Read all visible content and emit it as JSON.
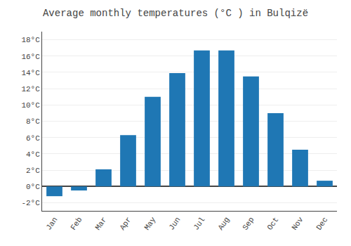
{
  "chart_data": {
    "type": "bar",
    "title": "Average monthly temperatures (°C ) in Bulqizë",
    "categories": [
      "Jan",
      "Feb",
      "Mar",
      "Apr",
      "May",
      "Jun",
      "Jul",
      "Aug",
      "Sep",
      "Oct",
      "Nov",
      "Dec"
    ],
    "values": [
      -1.2,
      -0.5,
      2.1,
      6.3,
      11.0,
      13.9,
      16.7,
      16.7,
      13.5,
      9.0,
      4.5,
      0.7
    ],
    "ylim": [
      -3,
      19
    ],
    "yticks": [
      {
        "value": -2,
        "label": "-2°C"
      },
      {
        "value": 0,
        "label": "0°C"
      },
      {
        "value": 2,
        "label": "2°C"
      },
      {
        "value": 4,
        "label": "4°C"
      },
      {
        "value": 6,
        "label": "6°C"
      },
      {
        "value": 8,
        "label": "8°C"
      },
      {
        "value": 10,
        "label": "10°C"
      },
      {
        "value": 12,
        "label": "12°C"
      },
      {
        "value": 14,
        "label": "14°C"
      },
      {
        "value": 16,
        "label": "16°C"
      },
      {
        "value": 18,
        "label": "18°C"
      }
    ],
    "grid": true
  }
}
